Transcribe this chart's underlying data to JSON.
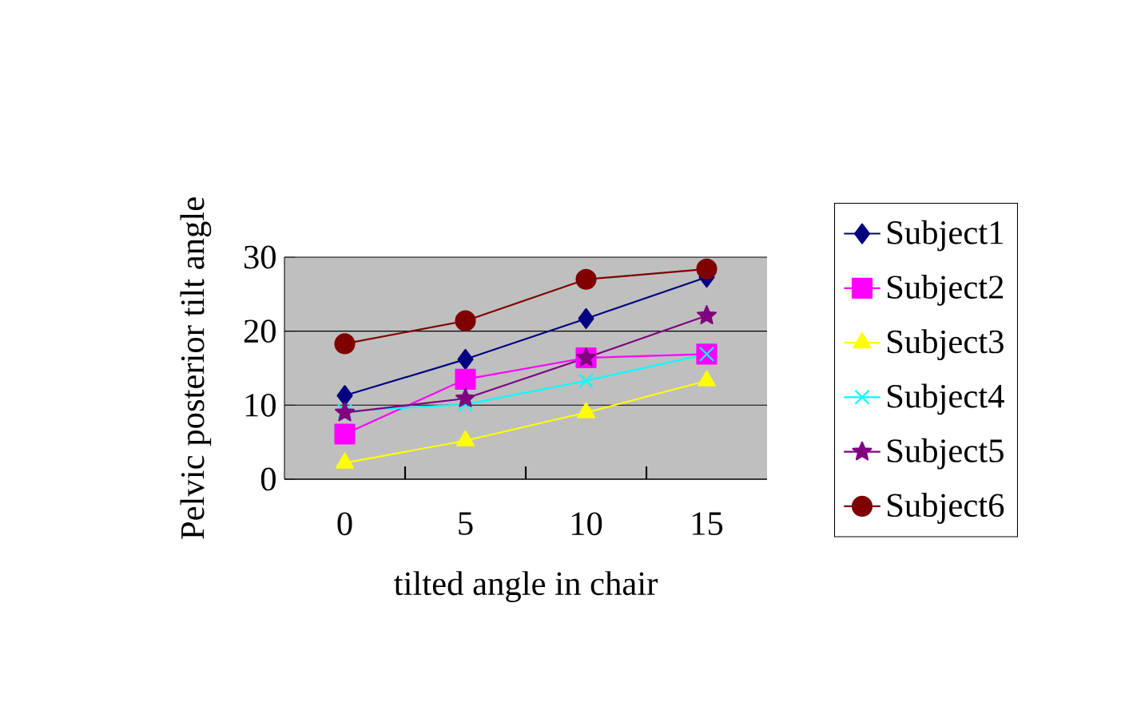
{
  "chart_data": {
    "type": "line",
    "xlabel": "tilted angle in chair",
    "ylabel": "Pelvic posterior tilt angle",
    "categories": [
      "0",
      "5",
      "10",
      "15"
    ],
    "ylim": [
      0,
      30
    ],
    "yticks": [
      0,
      10,
      20,
      30
    ],
    "grid": "y",
    "legend": "right",
    "series": [
      {
        "name": "Subject1",
        "color": "#000080",
        "marker": "diamond",
        "values": [
          11.3,
          16.2,
          21.7,
          27.3
        ]
      },
      {
        "name": "Subject2",
        "color": "#ff00ff",
        "marker": "square",
        "values": [
          6.1,
          13.5,
          16.4,
          16.9
        ]
      },
      {
        "name": "Subject3",
        "color": "#ffff00",
        "marker": "triangle",
        "values": [
          2.2,
          5.2,
          9.0,
          13.3
        ]
      },
      {
        "name": "Subject4",
        "color": "#00ffff",
        "marker": "cross",
        "values": [
          9.2,
          10.1,
          13.3,
          16.9
        ]
      },
      {
        "name": "Subject5",
        "color": "#800080",
        "marker": "star",
        "values": [
          9.0,
          10.9,
          16.4,
          22.1
        ]
      },
      {
        "name": "Subject6",
        "color": "#800000",
        "marker": "circle",
        "values": [
          18.3,
          21.4,
          27.0,
          28.4
        ]
      }
    ]
  }
}
